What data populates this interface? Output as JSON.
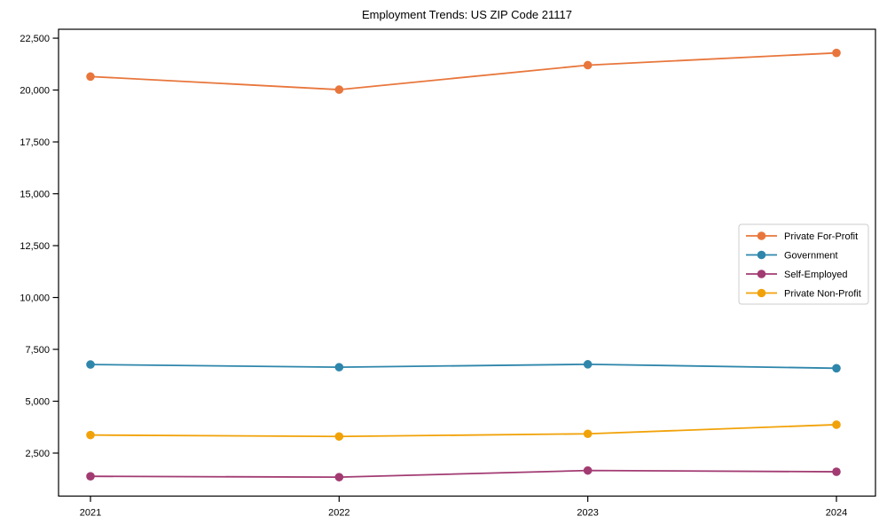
{
  "chart_data": {
    "type": "line",
    "title": "Employment Trends: US ZIP Code 21117",
    "xlabel": "",
    "ylabel": "",
    "x": [
      "2021",
      "2022",
      "2023",
      "2024"
    ],
    "series": [
      {
        "name": "Private For-Profit",
        "color": "#E8763C",
        "values": [
          20650,
          20020,
          21200,
          21790
        ]
      },
      {
        "name": "Government",
        "color": "#2E86AB",
        "values": [
          6770,
          6640,
          6780,
          6590
        ]
      },
      {
        "name": "Self-Employed",
        "color": "#A23B72",
        "values": [
          1380,
          1340,
          1660,
          1600
        ]
      },
      {
        "name": "Private Non-Profit",
        "color": "#F1A208",
        "values": [
          3370,
          3300,
          3430,
          3870
        ]
      }
    ],
    "ylim": [
      427,
      22930
    ],
    "yticks": [
      2500,
      5000,
      7500,
      10000,
      12500,
      15000,
      17500,
      20000,
      22500
    ],
    "ytick_labels": [
      "2,500",
      "5,000",
      "7,500",
      "10,000",
      "12,500",
      "15,000",
      "17,500",
      "20,000",
      "22,500"
    ],
    "grid": false,
    "frame": "box",
    "legend_position": "center right",
    "text_color": "#000000",
    "spine_color": "#000000",
    "legend_border_color": "#cccccc",
    "legend_bg_color": "#ffffff"
  }
}
